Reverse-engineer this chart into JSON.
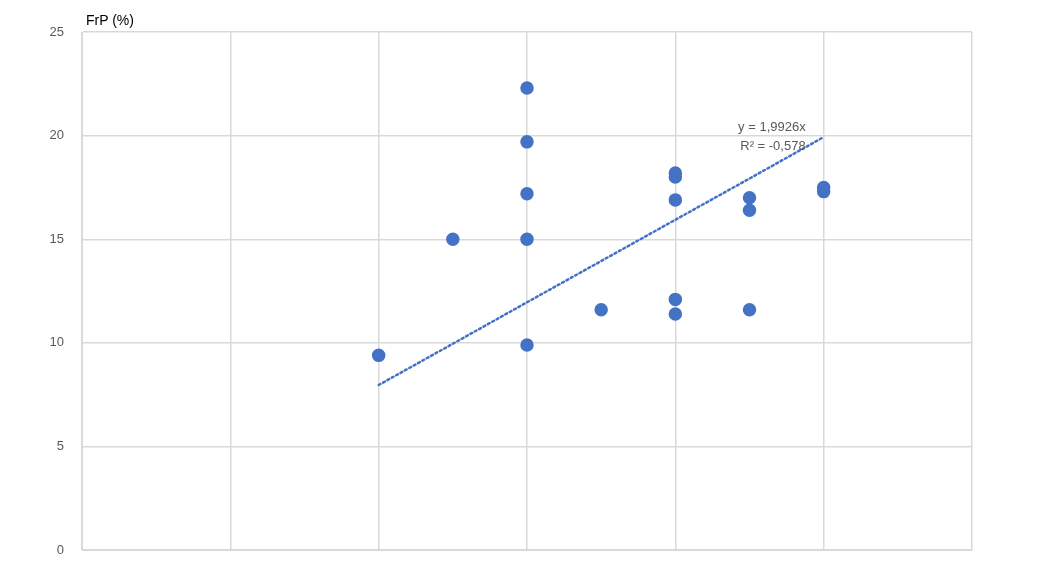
{
  "chart_data": {
    "type": "scatter",
    "ylabel": "FrP (%)",
    "categories": [
      null,
      null,
      null,
      null,
      null,
      null,
      null,
      null,
      null,
      null,
      null,
      null,
      null
    ],
    "ylim": [
      0,
      25
    ],
    "yticks": [
      0,
      5,
      10,
      15,
      20,
      25
    ],
    "tick_labels": "y",
    "grid": true,
    "legend": false,
    "marker": "circle",
    "series": [
      {
        "color": "#4472c4",
        "values": [
          null,
          null,
          null,
          null,
          9.4,
          15.0,
          22.3,
          11.6,
          18.2,
          17.0,
          17.5,
          null,
          null
        ]
      },
      {
        "color": "#4472c4",
        "values": [
          null,
          null,
          null,
          null,
          null,
          null,
          19.7,
          null,
          18.0,
          16.4,
          17.3,
          null,
          null
        ]
      },
      {
        "color": "#4472c4",
        "values": [
          null,
          null,
          null,
          null,
          null,
          null,
          17.2,
          null,
          16.9,
          11.6,
          null,
          null,
          null
        ]
      },
      {
        "color": "#4472c4",
        "values": [
          null,
          null,
          null,
          null,
          null,
          null,
          15.0,
          null,
          12.1,
          null,
          null,
          null,
          null
        ]
      },
      {
        "color": "#4472c4",
        "values": [
          null,
          null,
          null,
          null,
          null,
          null,
          9.9,
          null,
          11.4,
          null,
          null,
          null,
          null
        ]
      },
      {
        "type": "line",
        "color": "#4472c4",
        "line_style": "dotted",
        "marker": "none",
        "values": [
          null,
          null,
          null,
          null,
          7.97,
          9.96,
          11.96,
          13.95,
          15.94,
          17.93,
          19.93,
          null,
          null
        ]
      }
    ],
    "annotations": [
      "y = 1,9926x",
      "R² = -0,578"
    ]
  }
}
